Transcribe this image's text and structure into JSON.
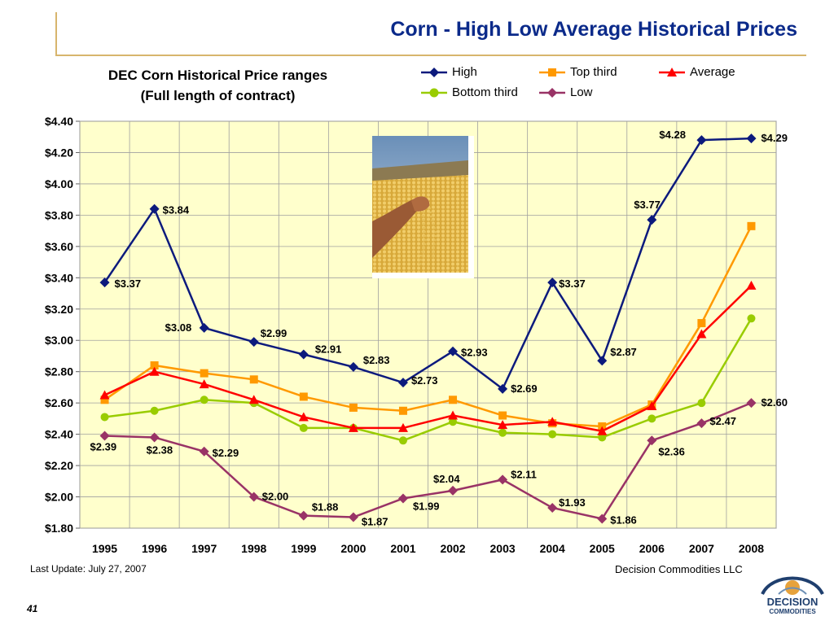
{
  "header": {
    "title": "Corn - High Low Average Historical Prices"
  },
  "chart_data": {
    "type": "line",
    "title": "DEC Corn Historical Price ranges",
    "subtitle": "(Full length of contract)",
    "categories": [
      "1995",
      "1996",
      "1997",
      "1998",
      "1999",
      "2000",
      "2001",
      "2002",
      "2003",
      "2004",
      "2005",
      "2006",
      "2007",
      "2008"
    ],
    "ylim": [
      1.8,
      4.4
    ],
    "yticks": [
      "$4.40",
      "$4.20",
      "$4.00",
      "$3.80",
      "$3.60",
      "$3.40",
      "$3.20",
      "$3.00",
      "$2.80",
      "$2.60",
      "$2.40",
      "$2.20",
      "$2.00",
      "$1.80"
    ],
    "ytick_values": [
      4.4,
      4.2,
      4.0,
      3.8,
      3.6,
      3.4,
      3.2,
      3.0,
      2.8,
      2.6,
      2.4,
      2.2,
      2.0,
      1.8
    ],
    "grid": true,
    "legend_position": "top-right",
    "series": [
      {
        "name": "High",
        "color": "#0c1a7d",
        "marker": "diamond",
        "values": [
          3.37,
          3.84,
          3.08,
          2.99,
          2.91,
          2.83,
          2.73,
          2.93,
          2.69,
          3.37,
          2.87,
          3.77,
          4.28,
          4.29
        ],
        "labels": [
          "$3.37",
          "$3.84",
          "$3.08",
          "$2.99",
          "$2.91",
          "$2.83",
          "$2.73",
          "$2.93",
          "$2.69",
          "$3.37",
          "$2.87",
          "$3.77",
          "$4.28",
          "$4.29"
        ]
      },
      {
        "name": "Top third",
        "color": "#ff9900",
        "marker": "square",
        "values": [
          2.62,
          2.84,
          2.79,
          2.75,
          2.64,
          2.57,
          2.55,
          2.62,
          2.52,
          2.47,
          2.45,
          2.59,
          3.11,
          3.73
        ]
      },
      {
        "name": "Average",
        "color": "#ff0000",
        "marker": "triangle",
        "values": [
          2.65,
          2.8,
          2.72,
          2.62,
          2.51,
          2.44,
          2.44,
          2.52,
          2.46,
          2.48,
          2.42,
          2.58,
          3.04,
          3.35
        ]
      },
      {
        "name": "Bottom third",
        "color": "#99cc00",
        "marker": "circle",
        "values": [
          2.51,
          2.55,
          2.62,
          2.6,
          2.44,
          2.44,
          2.36,
          2.48,
          2.41,
          2.4,
          2.38,
          2.5,
          2.6,
          3.14
        ]
      },
      {
        "name": "Low",
        "color": "#993366",
        "marker": "diamond",
        "values": [
          2.39,
          2.38,
          2.29,
          2.0,
          1.88,
          1.87,
          1.99,
          2.04,
          2.11,
          1.93,
          1.86,
          2.36,
          2.47,
          2.6
        ],
        "labels": [
          "$2.39",
          "$2.38",
          "$2.29",
          "$2.00",
          "$1.88",
          "$1.87",
          "$1.99",
          "$2.04",
          "$2.11",
          "$1.93",
          "$1.86",
          "$2.36",
          "$2.47",
          "$2.60"
        ]
      }
    ],
    "plot_background": "#ffffcc"
  },
  "footer": {
    "last_update": "Last Update: July 27, 2007",
    "company": "Decision Commodities LLC",
    "page_number": "41"
  },
  "logo": {
    "line1": "DECISION",
    "line2": "COMMODITIES"
  }
}
